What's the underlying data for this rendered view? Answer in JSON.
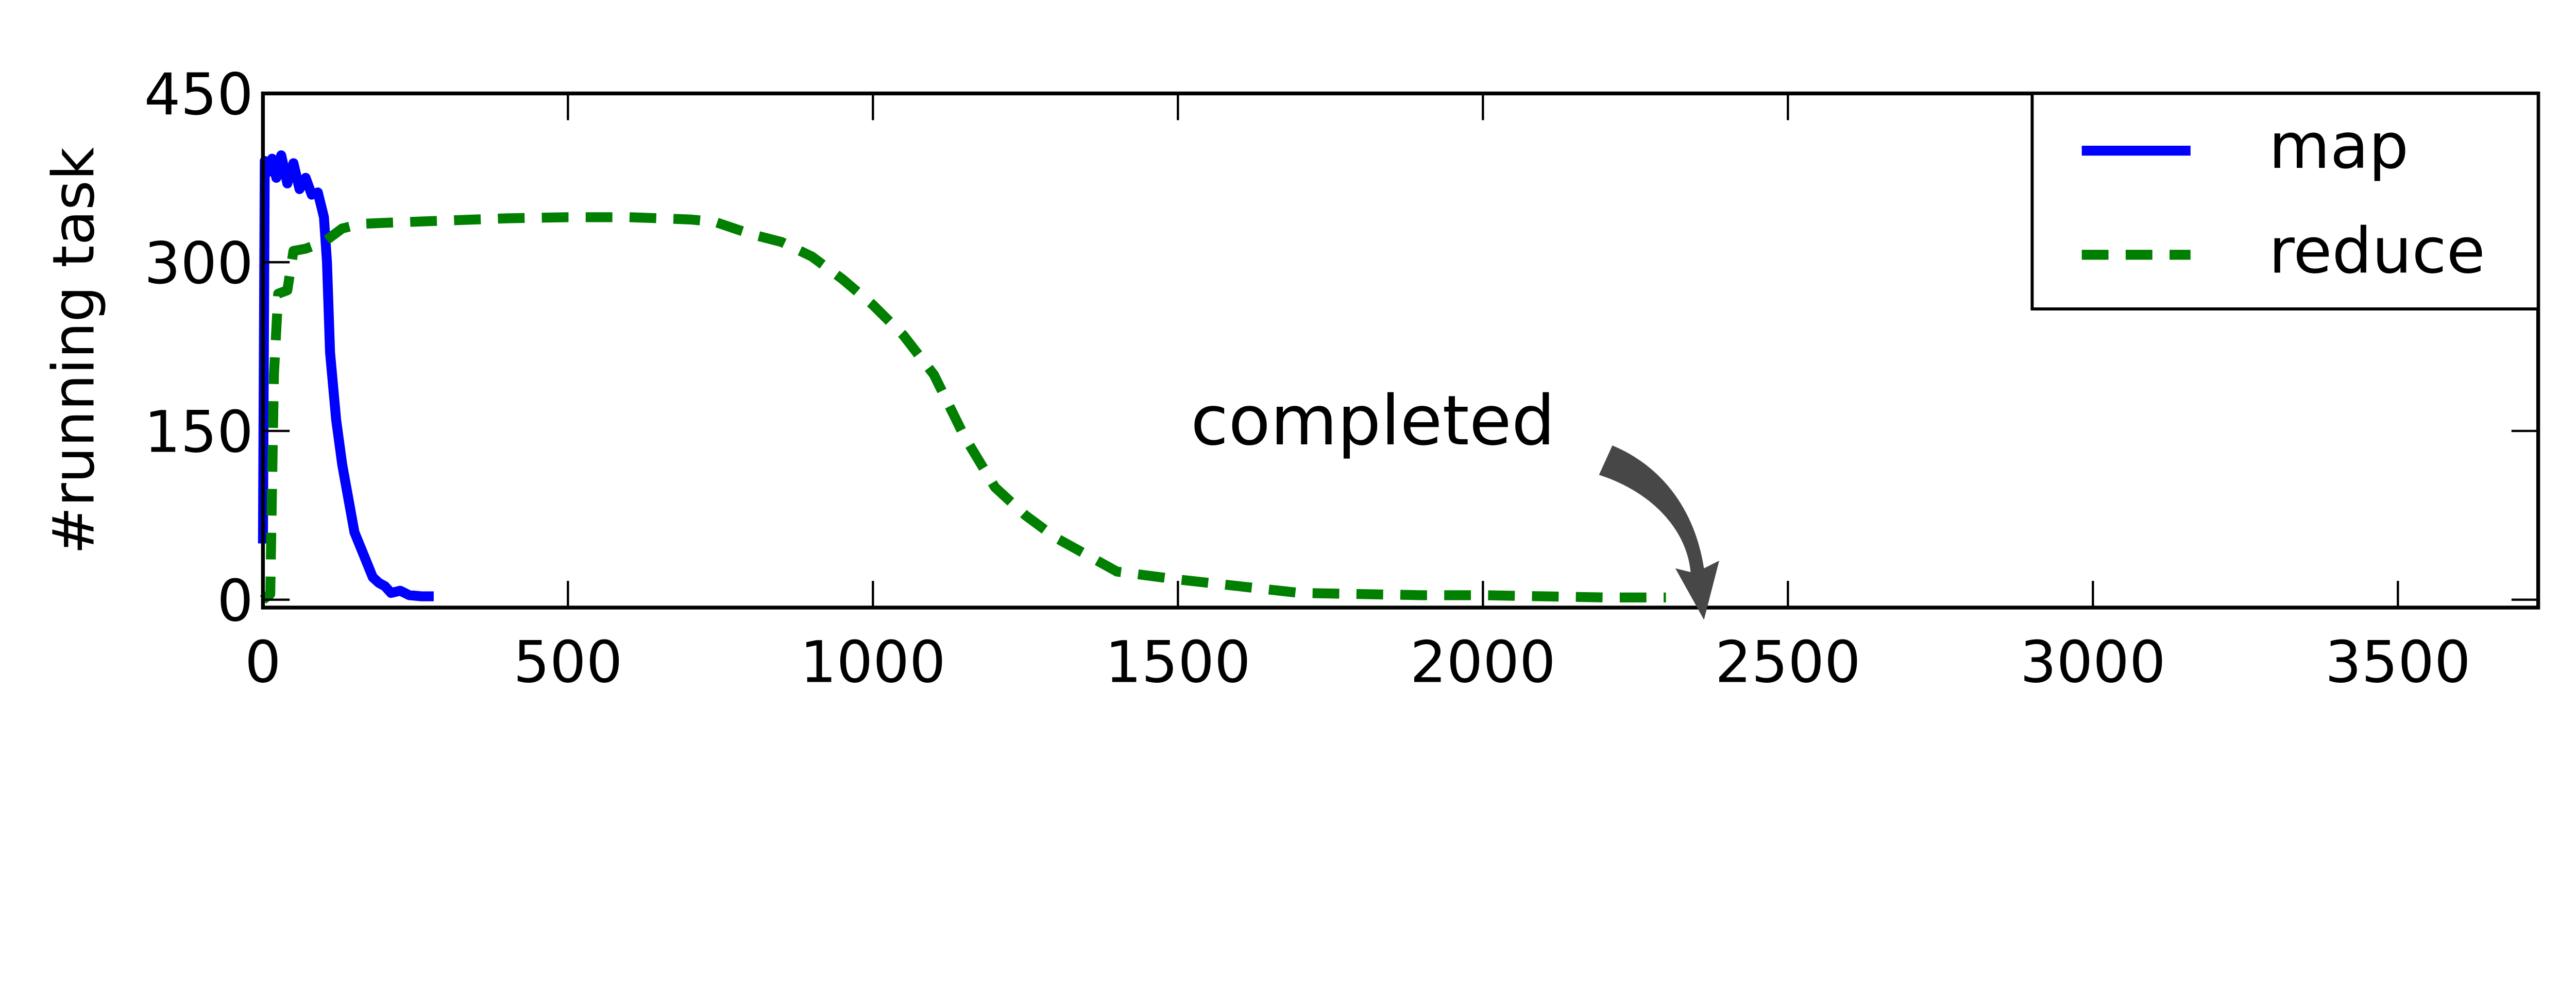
{
  "chart_data": {
    "type": "line",
    "title": "",
    "xlabel": "",
    "ylabel": "#running task",
    "xlim": [
      0,
      3730
    ],
    "ylim": [
      -7,
      450
    ],
    "xticks": [
      0,
      500,
      1000,
      1500,
      2000,
      2500,
      3000,
      3500
    ],
    "yticks": [
      0,
      150,
      300,
      450
    ],
    "grid": false,
    "legend_position": "top-right",
    "series": [
      {
        "name": "map",
        "color": "#0000ff",
        "style": "solid",
        "x": [
          0,
          3,
          8,
          15,
          22,
          30,
          40,
          50,
          60,
          70,
          80,
          90,
          100,
          105,
          110,
          120,
          130,
          140,
          150,
          165,
          180,
          190,
          200,
          210,
          225,
          240,
          260,
          280
        ],
        "y": [
          50,
          390,
          380,
          392,
          375,
          395,
          370,
          388,
          365,
          375,
          360,
          362,
          340,
          300,
          220,
          160,
          120,
          90,
          60,
          40,
          20,
          15,
          12,
          6,
          8,
          4,
          3,
          3
        ]
      },
      {
        "name": "reduce",
        "color": "#007f00",
        "style": "dashed",
        "x": [
          0,
          12,
          18,
          25,
          40,
          50,
          70,
          100,
          130,
          160,
          200,
          300,
          400,
          500,
          600,
          700,
          740,
          800,
          850,
          900,
          950,
          1000,
          1050,
          1100,
          1150,
          1200,
          1250,
          1300,
          1350,
          1400,
          1500,
          1600,
          1700,
          1800,
          1900,
          2000,
          2100,
          2200,
          2300
        ],
        "y": [
          0,
          5,
          200,
          272,
          275,
          310,
          312,
          318,
          330,
          334,
          335,
          337,
          339,
          340,
          340,
          338,
          336,
          325,
          318,
          305,
          285,
          262,
          235,
          200,
          145,
          100,
          75,
          55,
          40,
          25,
          18,
          12,
          6,
          5,
          4,
          4,
          3,
          2,
          2
        ]
      }
    ],
    "annotations": [
      {
        "text": "completed",
        "points_to": [
          2350,
          10
        ]
      }
    ]
  }
}
